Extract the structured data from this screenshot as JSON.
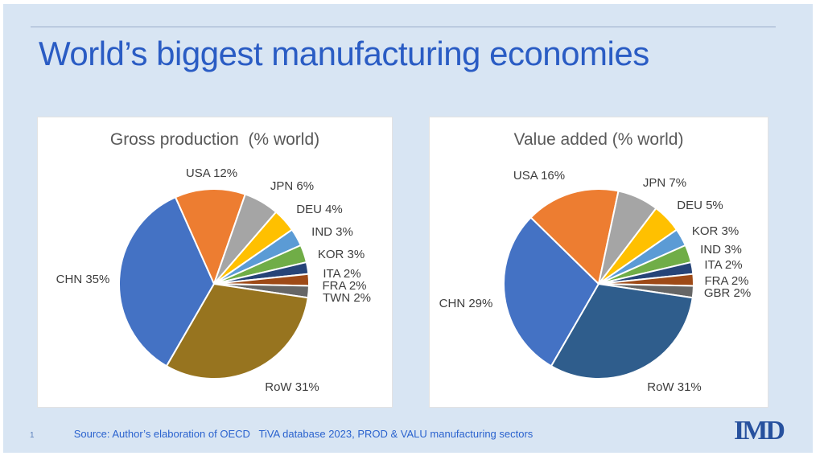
{
  "slide": {
    "title": "World’s biggest manufacturing economies",
    "page_number": "1",
    "source": "Source: Author’s elaboration of OECD   TiVA database 2023, PROD & VALU manufacturing sectors",
    "logo_text": "IMD",
    "colors": {
      "slide_bg": "#D8E5F3",
      "title_blue": "#2A5CC4",
      "chart_title_gray": "#595959",
      "label_gray": "#3D3D3D",
      "source_blue": "#2A62CE",
      "logo_blue": "#27519E"
    }
  },
  "chart_data": [
    {
      "type": "pie",
      "title": "Gross production  (% world)",
      "unit": "% of world",
      "start_angle_deg": 210,
      "legend_position": "none",
      "slices": [
        {
          "category": "CHN",
          "value": 35,
          "display": "CHN 35%",
          "color": "#4472C4",
          "label_pos": [
            56,
            202
          ]
        },
        {
          "category": "USA",
          "value": 12,
          "display": "USA 12%",
          "color": "#ED7D31",
          "label_pos": [
            216,
            70
          ]
        },
        {
          "category": "JPN",
          "value": 6,
          "display": "JPN 6%",
          "color": "#A5A5A5",
          "label_pos": [
            316,
            86
          ]
        },
        {
          "category": "DEU",
          "value": 4,
          "display": "DEU 4%",
          "color": "#FFC000",
          "label_pos": [
            350,
            115
          ]
        },
        {
          "category": "IND",
          "value": 3,
          "display": "IND 3%",
          "color": "#5B9BD5",
          "label_pos": [
            366,
            143
          ]
        },
        {
          "category": "KOR",
          "value": 3,
          "display": "KOR 3%",
          "color": "#70AD47",
          "label_pos": [
            377,
            171
          ]
        },
        {
          "category": "ITA",
          "value": 2,
          "display": "ITA 2%",
          "color": "#264478",
          "label_pos": [
            378,
            195
          ]
        },
        {
          "category": "FRA",
          "value": 2,
          "display": "FRA 2%",
          "color": "#9E4A17",
          "label_pos": [
            381,
            210
          ]
        },
        {
          "category": "TWN",
          "value": 2,
          "display": "TWN 2%",
          "color": "#666666",
          "label_pos": [
            384,
            225
          ]
        },
        {
          "category": "RoW",
          "value": 31,
          "display": "RoW 31%",
          "color": "#97741F",
          "label_pos": [
            316,
            336
          ]
        }
      ]
    },
    {
      "type": "pie",
      "title": "Value added (% world)",
      "unit": "% of world",
      "start_angle_deg": 210,
      "legend_position": "none",
      "slices": [
        {
          "category": "CHN",
          "value": 29,
          "display": "CHN 29%",
          "color": "#4472C4",
          "label_pos": [
            45,
            232
          ]
        },
        {
          "category": "USA",
          "value": 16,
          "display": "USA 16%",
          "color": "#ED7D31",
          "label_pos": [
            136,
            73
          ]
        },
        {
          "category": "JPN",
          "value": 7,
          "display": "JPN 7%",
          "color": "#A5A5A5",
          "label_pos": [
            292,
            82
          ]
        },
        {
          "category": "DEU",
          "value": 5,
          "display": "DEU 5%",
          "color": "#FFC000",
          "label_pos": [
            336,
            110
          ]
        },
        {
          "category": "KOR",
          "value": 3,
          "display": "KOR 3%",
          "color": "#5B9BD5",
          "label_pos": [
            355,
            142
          ]
        },
        {
          "category": "IND",
          "value": 3,
          "display": "IND 3%",
          "color": "#70AD47",
          "label_pos": [
            362,
            165
          ]
        },
        {
          "category": "ITA",
          "value": 2,
          "display": "ITA 2%",
          "color": "#264478",
          "label_pos": [
            365,
            184
          ]
        },
        {
          "category": "FRA",
          "value": 2,
          "display": "FRA 2%",
          "color": "#9E4A17",
          "label_pos": [
            369,
            204
          ]
        },
        {
          "category": "GBR",
          "value": 2,
          "display": "GBR 2%",
          "color": "#666666",
          "label_pos": [
            370,
            219
          ]
        },
        {
          "category": "RoW",
          "value": 31,
          "display": "RoW 31%",
          "color": "#2F5D8C",
          "label_pos": [
            304,
            336
          ]
        }
      ]
    }
  ]
}
